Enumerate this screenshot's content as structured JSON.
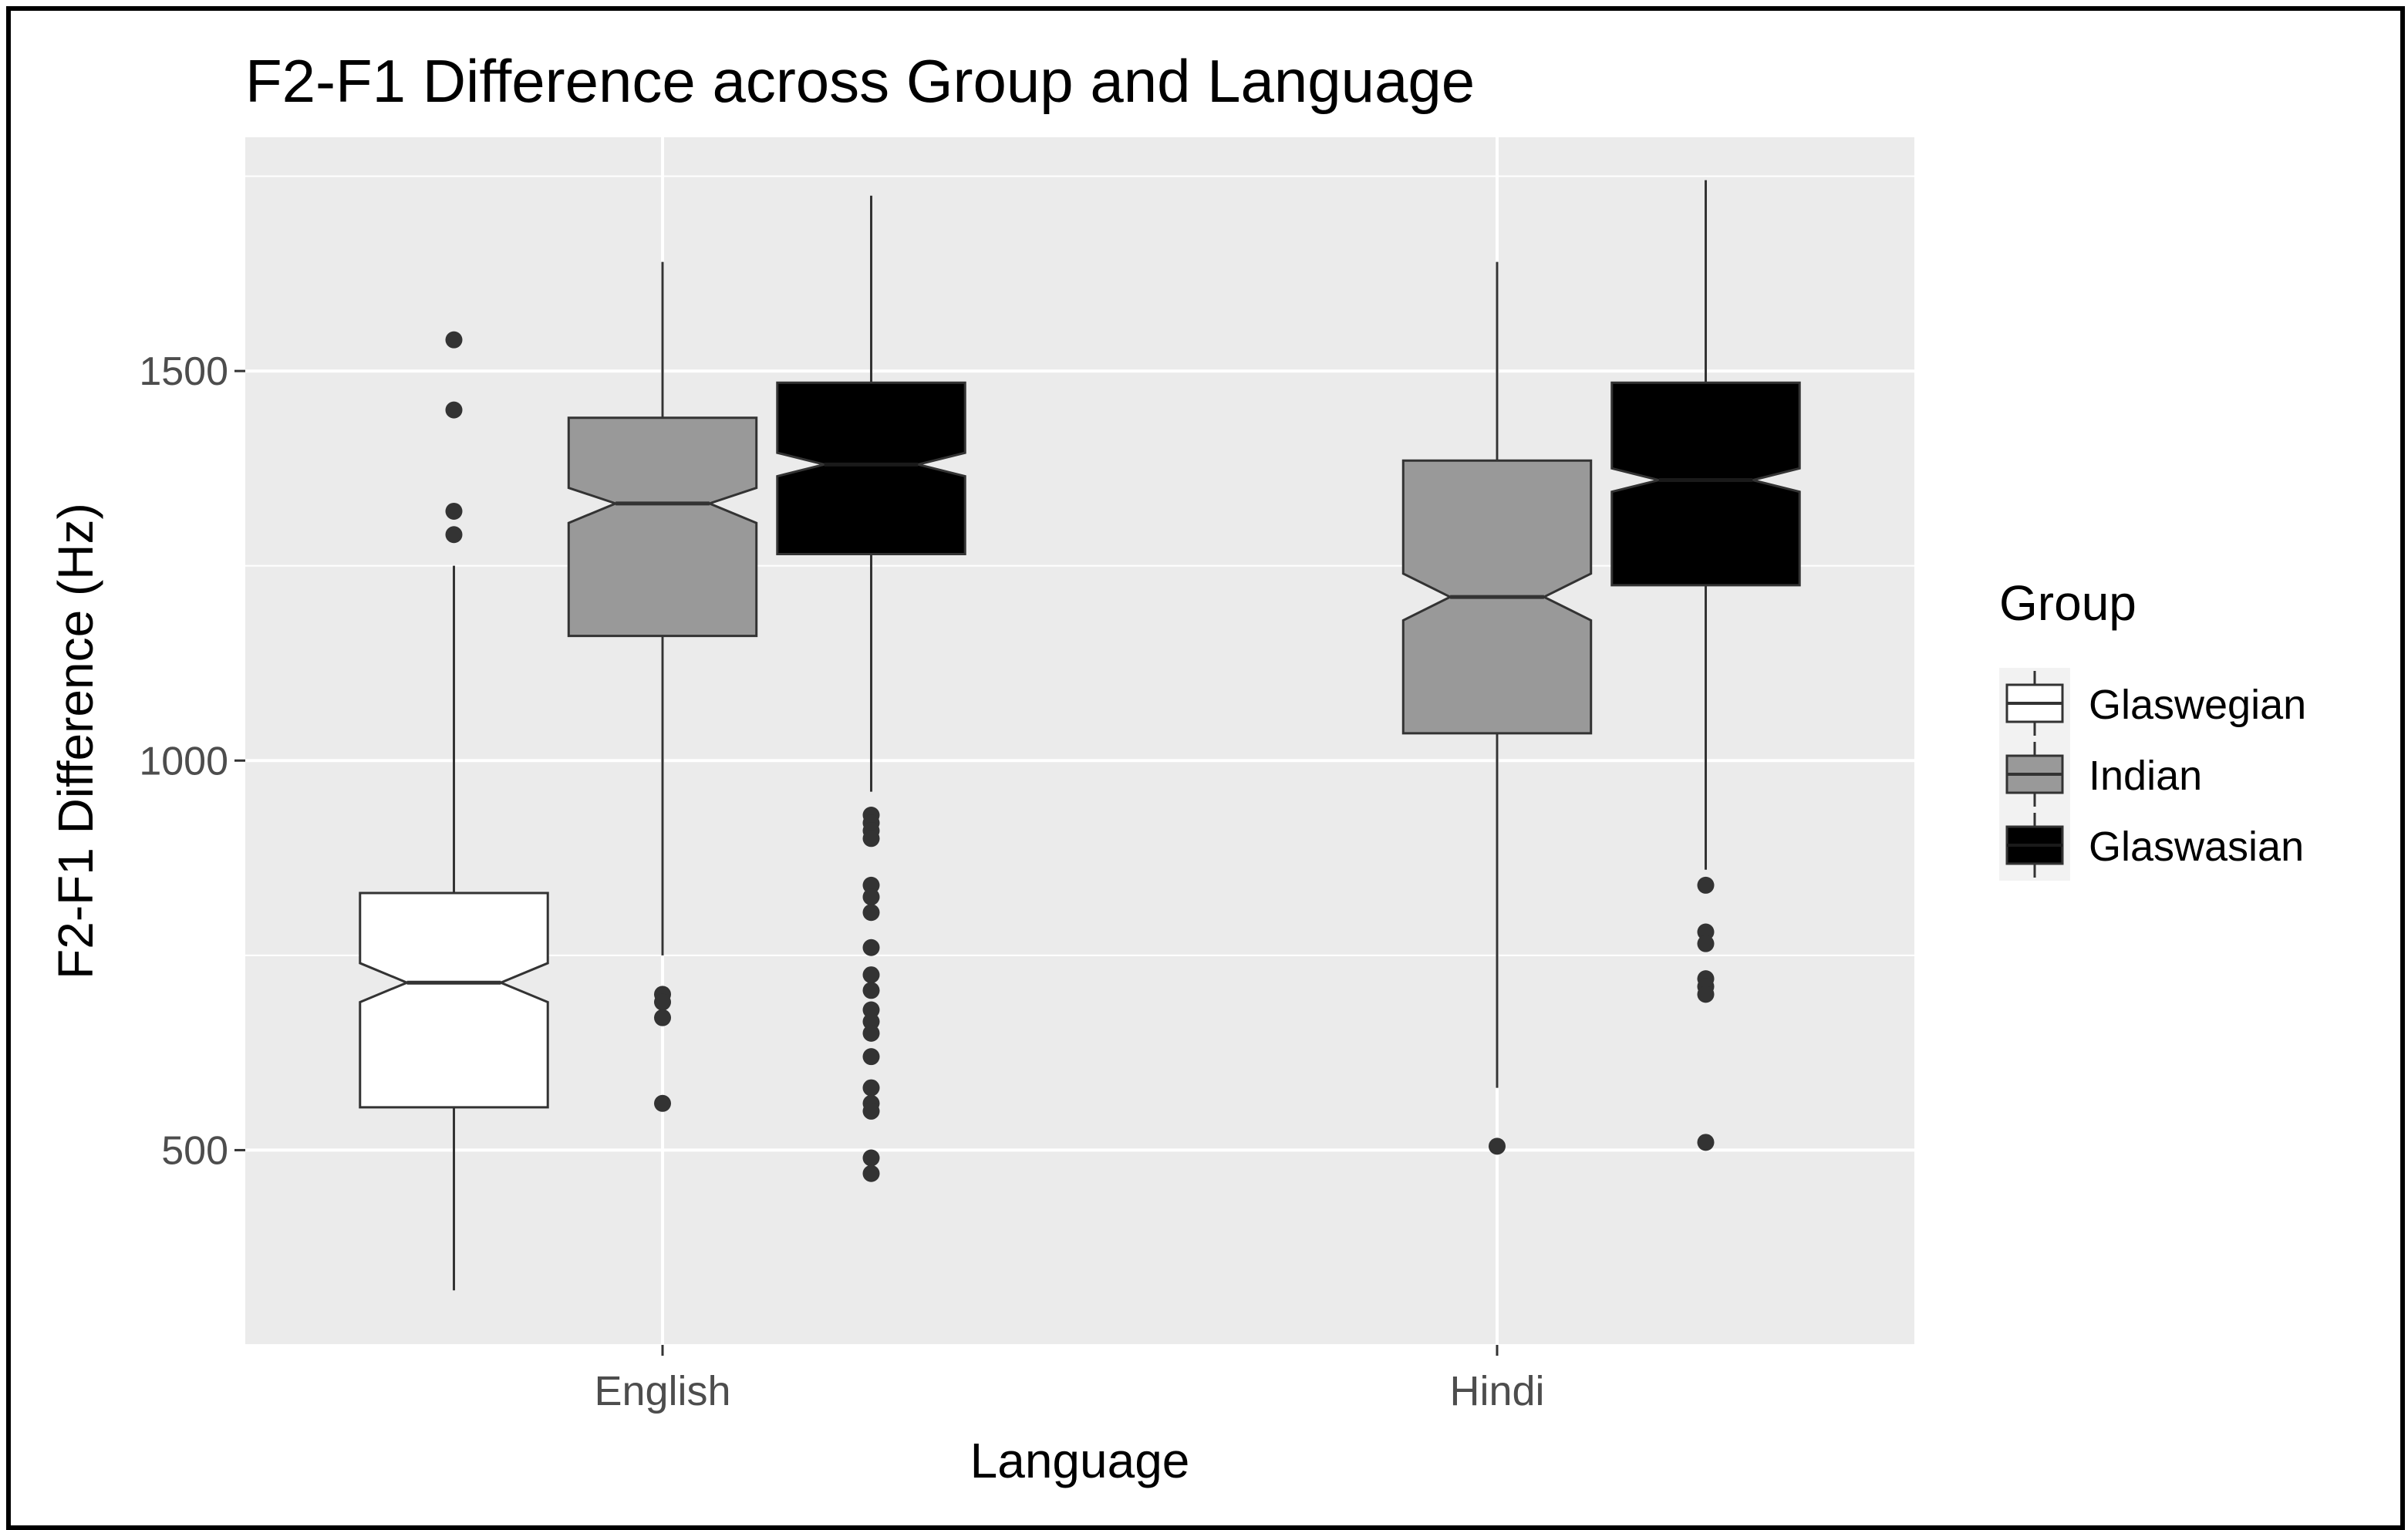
{
  "chart_data": {
    "type": "boxplot",
    "title": "F2-F1 Difference across Group and Language",
    "xlabel": "Language",
    "ylabel": "F2-F1 Difference (Hz)",
    "categories": [
      "English",
      "Hindi"
    ],
    "ylim": [
      250,
      1800
    ],
    "yticks": [
      500,
      1000,
      1500
    ],
    "notched": true,
    "grid": true,
    "legend": {
      "title": "Group",
      "position": "right"
    },
    "series": [
      {
        "name": "Glaswegian",
        "fill": "#ffffff",
        "boxes": [
          {
            "category": "English",
            "whisker_low": 320,
            "q1": 555,
            "median": 715,
            "q3": 830,
            "whisker_high": 1250,
            "notch_low": 690,
            "notch_high": 740,
            "outliers": [
              1540,
              1450,
              1320,
              1290
            ]
          }
        ]
      },
      {
        "name": "Indian",
        "fill": "#999999",
        "boxes": [
          {
            "category": "English",
            "whisker_low": 750,
            "q1": 1160,
            "median": 1330,
            "q3": 1440,
            "whisker_high": 1640,
            "notch_low": 1305,
            "notch_high": 1350,
            "outliers": [
              700,
              690,
              670,
              560
            ]
          },
          {
            "category": "Hindi",
            "whisker_low": 580,
            "q1": 1035,
            "median": 1210,
            "q3": 1385,
            "whisker_high": 1640,
            "notch_low": 1180,
            "notch_high": 1240,
            "outliers": [
              505
            ]
          }
        ]
      },
      {
        "name": "Glaswasian",
        "fill": "#000000",
        "boxes": [
          {
            "category": "English",
            "whisker_low": 960,
            "q1": 1265,
            "median": 1380,
            "q3": 1485,
            "whisker_high": 1725,
            "notch_low": 1365,
            "notch_high": 1395,
            "outliers": [
              930,
              920,
              910,
              900,
              840,
              825,
              805,
              760,
              725,
              705,
              680,
              665,
              650,
              620,
              580,
              560,
              550,
              490,
              470
            ]
          },
          {
            "category": "Hindi",
            "whisker_low": 860,
            "q1": 1225,
            "median": 1360,
            "q3": 1485,
            "whisker_high": 1745,
            "notch_low": 1345,
            "notch_high": 1375,
            "outliers": [
              840,
              780,
              765,
              720,
              710,
              700,
              510
            ]
          }
        ]
      }
    ]
  }
}
